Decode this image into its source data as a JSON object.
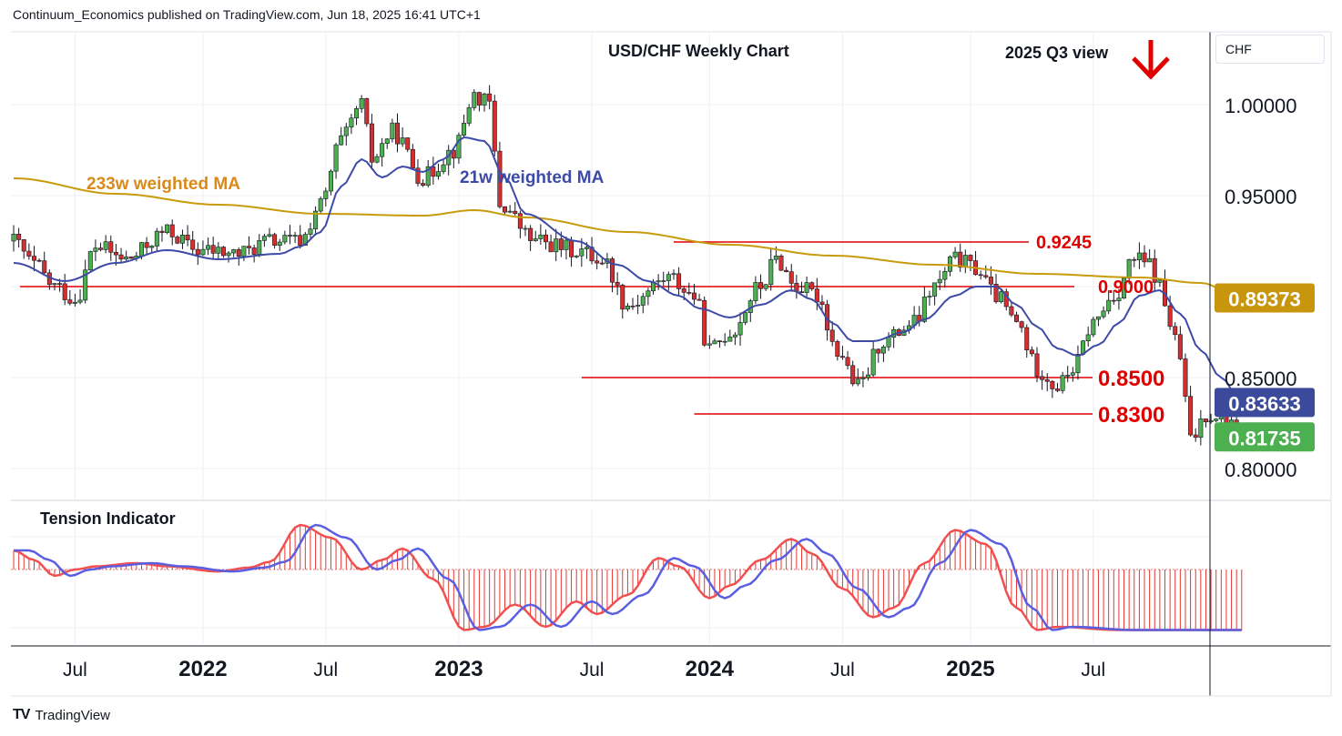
{
  "header": {
    "attribution": "Continuum_Economics published on TradingView.com, Jun 18, 2025 16:41 UTC+1"
  },
  "footer": {
    "logo_text": "TradingView"
  },
  "currency_button": "CHF",
  "colors": {
    "up": "#4caf50",
    "down": "#d32f2f",
    "ma233": "#c89b0c",
    "ma21": "#3d4aa6",
    "level_line": "#e00000",
    "badge_ma233": "#c8960c",
    "badge_ma21": "#3c4a9c",
    "badge_last": "#4caf50"
  },
  "chart_data": [
    {
      "type": "candlestick",
      "title": "USD/CHF Weekly Chart",
      "note": "2025 Q3 view",
      "note_icon": "down-arrow-icon",
      "y_ticks": [
        "1.00000",
        "0.95000",
        "0.85000",
        "0.80000"
      ],
      "y_ticks_values": [
        1.0,
        0.95,
        0.85,
        0.8
      ],
      "x_ticks": [
        "Jul",
        "2022",
        "Jul",
        "2023",
        "Jul",
        "2024",
        "Jul",
        "2025",
        "Jul"
      ],
      "x_range": [
        "2021-03",
        "2025-10"
      ],
      "y_range": [
        0.7825,
        1.0525
      ],
      "levels": [
        {
          "label": "0.9245",
          "value": 0.9245
        },
        {
          "label": "0.9000",
          "value": 0.9
        },
        {
          "label": "0.8500",
          "value": 0.85
        },
        {
          "label": "0.8300",
          "value": 0.83
        }
      ],
      "series_labels": [
        {
          "name": "233w weighted MA",
          "color": "#c89b0c"
        },
        {
          "name": "21w weighted MA",
          "color": "#3d4aa6"
        }
      ],
      "price_badges": [
        {
          "label": "0.89373",
          "value": 0.89373,
          "role": "233w MA"
        },
        {
          "label": "0.83633",
          "value": 0.83633,
          "role": "21w MA"
        },
        {
          "label": "0.81735",
          "value": 0.81735,
          "role": "last close"
        }
      ],
      "anchors": [
        {
          "t": 0,
          "v": 0.925
        },
        {
          "t": 4,
          "v": 0.912
        },
        {
          "t": 8,
          "v": 0.9
        },
        {
          "t": 12,
          "v": 0.893
        },
        {
          "t": 16,
          "v": 0.922
        },
        {
          "t": 22,
          "v": 0.915
        },
        {
          "t": 30,
          "v": 0.93
        },
        {
          "t": 36,
          "v": 0.92
        },
        {
          "t": 44,
          "v": 0.918
        },
        {
          "t": 50,
          "v": 0.925
        },
        {
          "t": 56,
          "v": 0.925
        },
        {
          "t": 60,
          "v": 0.945
        },
        {
          "t": 64,
          "v": 0.98
        },
        {
          "t": 68,
          "v": 1.0
        },
        {
          "t": 70,
          "v": 0.97
        },
        {
          "t": 74,
          "v": 0.985
        },
        {
          "t": 80,
          "v": 0.96
        },
        {
          "t": 86,
          "v": 0.975
        },
        {
          "t": 90,
          "v": 1.005
        },
        {
          "t": 93,
          "v": 1.0
        },
        {
          "t": 95,
          "v": 0.945
        },
        {
          "t": 102,
          "v": 0.925
        },
        {
          "t": 110,
          "v": 0.92
        },
        {
          "t": 115,
          "v": 0.915
        },
        {
          "t": 120,
          "v": 0.89
        },
        {
          "t": 128,
          "v": 0.905
        },
        {
          "t": 133,
          "v": 0.895
        },
        {
          "t": 136,
          "v": 0.865
        },
        {
          "t": 140,
          "v": 0.875
        },
        {
          "t": 146,
          "v": 0.9
        },
        {
          "t": 149,
          "v": 0.915
        },
        {
          "t": 153,
          "v": 0.9
        },
        {
          "t": 157,
          "v": 0.895
        },
        {
          "t": 161,
          "v": 0.865
        },
        {
          "t": 165,
          "v": 0.845
        },
        {
          "t": 170,
          "v": 0.87
        },
        {
          "t": 176,
          "v": 0.88
        },
        {
          "t": 180,
          "v": 0.9
        },
        {
          "t": 184,
          "v": 0.915
        },
        {
          "t": 188,
          "v": 0.91
        },
        {
          "t": 192,
          "v": 0.895
        },
        {
          "t": 196,
          "v": 0.88
        },
        {
          "t": 200,
          "v": 0.855
        },
        {
          "t": 204,
          "v": 0.845
        },
        {
          "t": 207,
          "v": 0.855
        },
        {
          "t": 211,
          "v": 0.88
        },
        {
          "t": 215,
          "v": 0.895
        },
        {
          "t": 219,
          "v": 0.915
        },
        {
          "t": 222,
          "v": 0.912
        },
        {
          "t": 224,
          "v": 0.9
        },
        {
          "t": 226,
          "v": 0.88
        },
        {
          "t": 228,
          "v": 0.86
        },
        {
          "t": 230,
          "v": 0.815
        },
        {
          "t": 233,
          "v": 0.83
        },
        {
          "t": 236,
          "v": 0.83
        },
        {
          "t": 240,
          "v": 0.817
        }
      ],
      "ma233_anchors": [
        {
          "t": 0,
          "v": 0.9595
        },
        {
          "t": 20,
          "v": 0.951
        },
        {
          "t": 40,
          "v": 0.945
        },
        {
          "t": 60,
          "v": 0.94
        },
        {
          "t": 80,
          "v": 0.939
        },
        {
          "t": 90,
          "v": 0.942
        },
        {
          "t": 100,
          "v": 0.938
        },
        {
          "t": 120,
          "v": 0.93
        },
        {
          "t": 140,
          "v": 0.923
        },
        {
          "t": 160,
          "v": 0.917
        },
        {
          "t": 180,
          "v": 0.912
        },
        {
          "t": 200,
          "v": 0.907
        },
        {
          "t": 220,
          "v": 0.905
        },
        {
          "t": 232,
          "v": 0.902
        },
        {
          "t": 240,
          "v": 0.8937
        }
      ],
      "ma21_anchors": [
        {
          "t": 0,
          "v": 0.913
        },
        {
          "t": 10,
          "v": 0.903
        },
        {
          "t": 20,
          "v": 0.913
        },
        {
          "t": 30,
          "v": 0.92
        },
        {
          "t": 40,
          "v": 0.915
        },
        {
          "t": 52,
          "v": 0.918
        },
        {
          "t": 56,
          "v": 0.922
        },
        {
          "t": 60,
          "v": 0.93
        },
        {
          "t": 64,
          "v": 0.955
        },
        {
          "t": 68,
          "v": 0.97
        },
        {
          "t": 72,
          "v": 0.96
        },
        {
          "t": 76,
          "v": 0.966
        },
        {
          "t": 80,
          "v": 0.963
        },
        {
          "t": 84,
          "v": 0.97
        },
        {
          "t": 88,
          "v": 0.982
        },
        {
          "t": 92,
          "v": 0.98
        },
        {
          "t": 96,
          "v": 0.96
        },
        {
          "t": 100,
          "v": 0.94
        },
        {
          "t": 110,
          "v": 0.925
        },
        {
          "t": 118,
          "v": 0.912
        },
        {
          "t": 124,
          "v": 0.903
        },
        {
          "t": 130,
          "v": 0.895
        },
        {
          "t": 134,
          "v": 0.888
        },
        {
          "t": 140,
          "v": 0.883
        },
        {
          "t": 146,
          "v": 0.89
        },
        {
          "t": 152,
          "v": 0.898
        },
        {
          "t": 156,
          "v": 0.893
        },
        {
          "t": 160,
          "v": 0.88
        },
        {
          "t": 164,
          "v": 0.87
        },
        {
          "t": 168,
          "v": 0.87
        },
        {
          "t": 174,
          "v": 0.875
        },
        {
          "t": 178,
          "v": 0.882
        },
        {
          "t": 184,
          "v": 0.895
        },
        {
          "t": 188,
          "v": 0.9
        },
        {
          "t": 192,
          "v": 0.9
        },
        {
          "t": 196,
          "v": 0.89
        },
        {
          "t": 200,
          "v": 0.878
        },
        {
          "t": 204,
          "v": 0.866
        },
        {
          "t": 208,
          "v": 0.862
        },
        {
          "t": 212,
          "v": 0.868
        },
        {
          "t": 216,
          "v": 0.88
        },
        {
          "t": 220,
          "v": 0.895
        },
        {
          "t": 224,
          "v": 0.898
        },
        {
          "t": 228,
          "v": 0.885
        },
        {
          "t": 232,
          "v": 0.865
        },
        {
          "t": 236,
          "v": 0.85
        },
        {
          "t": 240,
          "v": 0.8363
        }
      ]
    },
    {
      "type": "area",
      "title": "Tension Indicator",
      "y_range": [
        -1.05,
        1.1
      ],
      "anchors": [
        {
          "t": 0,
          "v": 0.3
        },
        {
          "t": 4,
          "v": 0.15
        },
        {
          "t": 8,
          "v": -0.1
        },
        {
          "t": 12,
          "v": 0.0
        },
        {
          "t": 16,
          "v": 0.05
        },
        {
          "t": 24,
          "v": 0.1
        },
        {
          "t": 30,
          "v": 0.05
        },
        {
          "t": 40,
          "v": -0.03
        },
        {
          "t": 46,
          "v": 0.03
        },
        {
          "t": 50,
          "v": 0.12
        },
        {
          "t": 56,
          "v": 0.7
        },
        {
          "t": 62,
          "v": 0.5
        },
        {
          "t": 68,
          "v": 0.0
        },
        {
          "t": 72,
          "v": 0.15
        },
        {
          "t": 76,
          "v": 0.33
        },
        {
          "t": 82,
          "v": -0.15
        },
        {
          "t": 88,
          "v": -0.95
        },
        {
          "t": 92,
          "v": -0.9
        },
        {
          "t": 98,
          "v": -0.55
        },
        {
          "t": 104,
          "v": -0.9
        },
        {
          "t": 110,
          "v": -0.5
        },
        {
          "t": 114,
          "v": -0.7
        },
        {
          "t": 120,
          "v": -0.4
        },
        {
          "t": 126,
          "v": 0.18
        },
        {
          "t": 130,
          "v": 0.05
        },
        {
          "t": 136,
          "v": -0.45
        },
        {
          "t": 140,
          "v": -0.25
        },
        {
          "t": 146,
          "v": 0.15
        },
        {
          "t": 152,
          "v": 0.48
        },
        {
          "t": 156,
          "v": 0.25
        },
        {
          "t": 162,
          "v": -0.3
        },
        {
          "t": 168,
          "v": -0.75
        },
        {
          "t": 172,
          "v": -0.6
        },
        {
          "t": 178,
          "v": 0.1
        },
        {
          "t": 184,
          "v": 0.62
        },
        {
          "t": 190,
          "v": 0.4
        },
        {
          "t": 196,
          "v": -0.6
        },
        {
          "t": 200,
          "v": -0.95
        },
        {
          "t": 204,
          "v": -0.9
        },
        {
          "t": 216,
          "v": -0.95
        },
        {
          "t": 222,
          "v": -0.95
        },
        {
          "t": 240,
          "v": -0.95
        }
      ]
    }
  ]
}
